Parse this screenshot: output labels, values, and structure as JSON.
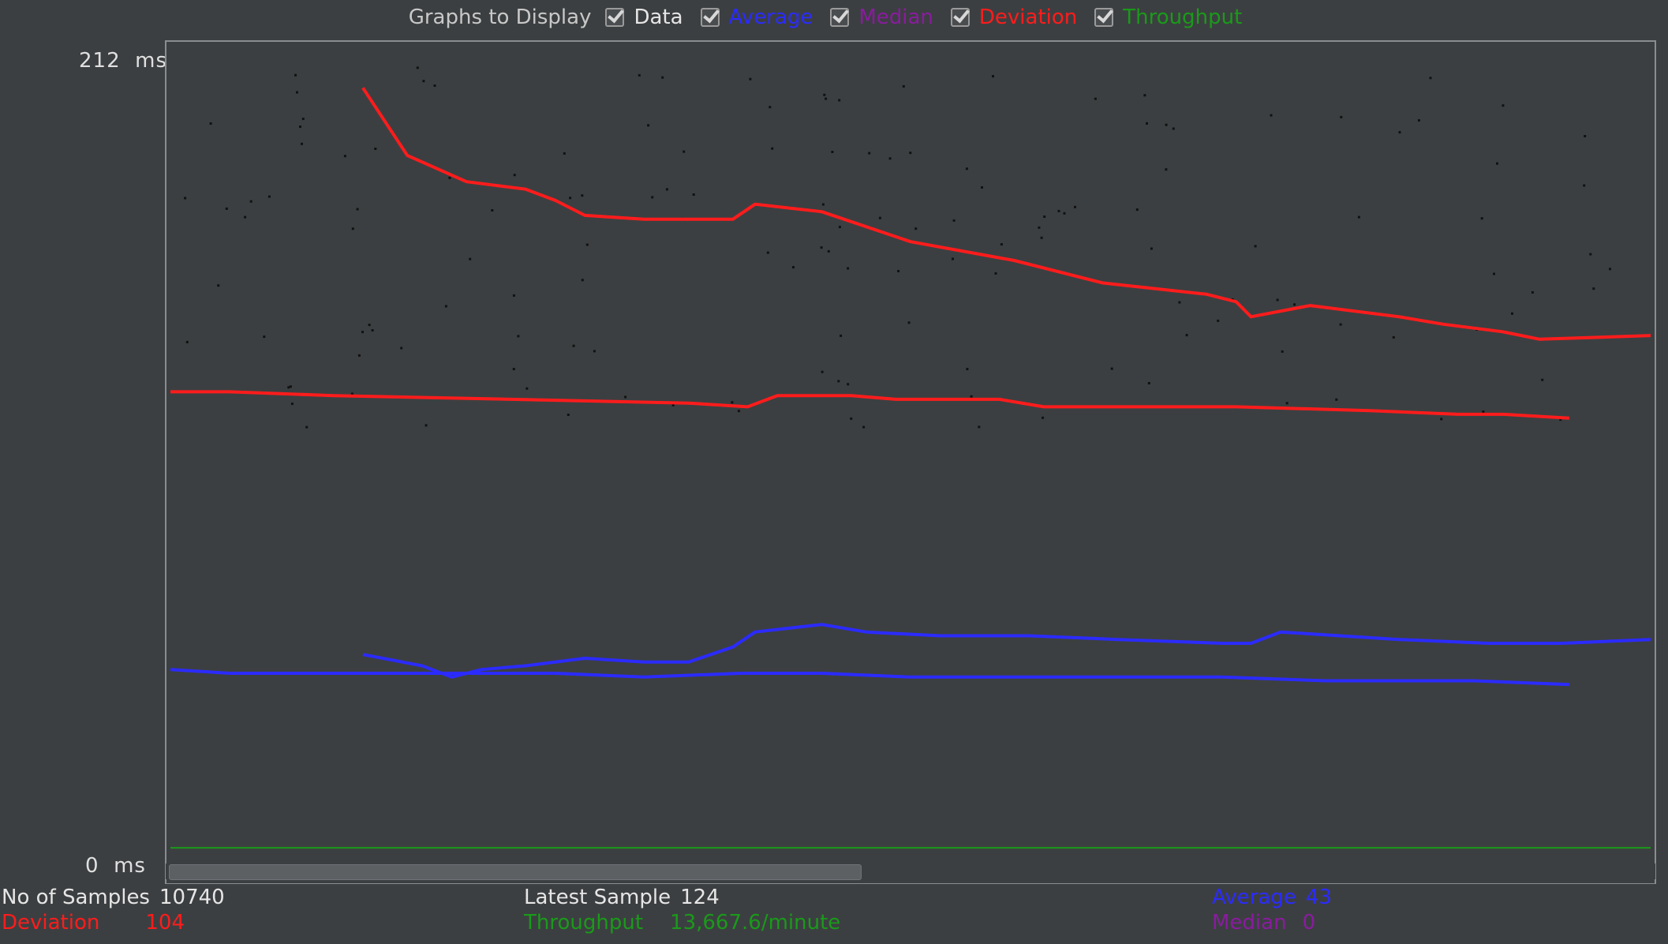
{
  "legend": {
    "title": "Graphs to Display",
    "items": [
      {
        "label": "Data",
        "color": "#e6e6e6"
      },
      {
        "label": "Average",
        "color": "#2b2bff"
      },
      {
        "label": "Median",
        "color": "#8a1ba0"
      },
      {
        "label": "Deviation",
        "color": "#ff1c1c"
      },
      {
        "label": "Throughput",
        "color": "#1a9a1a"
      }
    ]
  },
  "axis": {
    "max_label": "212",
    "min_label": "0",
    "unit": "ms"
  },
  "stats": {
    "samples_label": "No of Samples",
    "samples_value": "10740",
    "latest_label": "Latest Sample",
    "latest_value": "124",
    "average_label": "Average",
    "average_value": "43",
    "deviation_label": "Deviation",
    "deviation_value": "104",
    "throughput_label": "Throughput",
    "throughput_value": "13,667.6/minute",
    "median_label": "Median",
    "median_value": "0"
  },
  "colors": {
    "plot_bg": "#3c3f41",
    "plot_border": "#8a8d90",
    "data_points": "#111111",
    "average": "#2b2bff",
    "median": "#8a1ba0",
    "deviation": "#ff1c1c",
    "throughput": "#1a9a1a"
  },
  "chart_data": {
    "type": "line",
    "title": "",
    "xlabel": "",
    "ylabel": "",
    "ylim": [
      0,
      212
    ],
    "x_range": [
      0,
      1
    ],
    "legend_position": "top",
    "grid": false,
    "series": [
      {
        "name": "Deviation",
        "color": "#ff1c1c",
        "points": [
          [
            0.0,
            124
          ],
          [
            0.04,
            124
          ],
          [
            0.11,
            123
          ],
          [
            0.23,
            122
          ],
          [
            0.35,
            121
          ],
          [
            0.39,
            120
          ],
          [
            0.41,
            123
          ],
          [
            0.46,
            123
          ],
          [
            0.49,
            122
          ],
          [
            0.56,
            122
          ],
          [
            0.59,
            120
          ],
          [
            0.72,
            120
          ],
          [
            0.81,
            119
          ],
          [
            0.87,
            118
          ],
          [
            0.9,
            118
          ],
          [
            0.945,
            117
          ]
        ]
      },
      {
        "name": "Deviation",
        "color": "#ff1c1c",
        "points": [
          [
            0.13,
            205
          ],
          [
            0.16,
            187
          ],
          [
            0.2,
            180
          ],
          [
            0.24,
            178
          ],
          [
            0.26,
            175
          ],
          [
            0.28,
            171
          ],
          [
            0.32,
            170
          ],
          [
            0.38,
            170
          ],
          [
            0.395,
            174
          ],
          [
            0.44,
            172
          ],
          [
            0.5,
            164
          ],
          [
            0.57,
            159
          ],
          [
            0.63,
            153
          ],
          [
            0.7,
            150
          ],
          [
            0.72,
            148
          ],
          [
            0.73,
            144
          ],
          [
            0.77,
            147
          ],
          [
            0.83,
            144
          ],
          [
            0.86,
            142
          ],
          [
            0.9,
            140
          ],
          [
            0.925,
            138
          ],
          [
            1.0,
            139
          ]
        ]
      },
      {
        "name": "Average",
        "color": "#2b2bff",
        "points": [
          [
            0.0,
            50
          ],
          [
            0.04,
            49
          ],
          [
            0.1,
            49
          ],
          [
            0.18,
            49
          ],
          [
            0.26,
            49
          ],
          [
            0.32,
            48
          ],
          [
            0.385,
            49
          ],
          [
            0.44,
            49
          ],
          [
            0.5,
            48
          ],
          [
            0.6,
            48
          ],
          [
            0.71,
            48
          ],
          [
            0.78,
            47
          ],
          [
            0.88,
            47
          ],
          [
            0.945,
            46
          ]
        ]
      },
      {
        "name": "Average",
        "color": "#2b2bff",
        "points": [
          [
            0.13,
            54
          ],
          [
            0.17,
            51
          ],
          [
            0.19,
            48
          ],
          [
            0.21,
            50
          ],
          [
            0.24,
            51
          ],
          [
            0.28,
            53
          ],
          [
            0.32,
            52
          ],
          [
            0.35,
            52
          ],
          [
            0.38,
            56
          ],
          [
            0.395,
            60
          ],
          [
            0.44,
            62
          ],
          [
            0.47,
            60
          ],
          [
            0.52,
            59
          ],
          [
            0.58,
            59
          ],
          [
            0.64,
            58
          ],
          [
            0.71,
            57
          ],
          [
            0.73,
            57
          ],
          [
            0.75,
            60
          ],
          [
            0.79,
            59
          ],
          [
            0.83,
            58
          ],
          [
            0.89,
            57
          ],
          [
            0.94,
            57
          ],
          [
            1.0,
            58
          ]
        ]
      },
      {
        "name": "Throughput",
        "color": "#1a9a1a",
        "points": [
          [
            0.0,
            2.5
          ],
          [
            1.0,
            2.5
          ]
        ]
      }
    ]
  }
}
